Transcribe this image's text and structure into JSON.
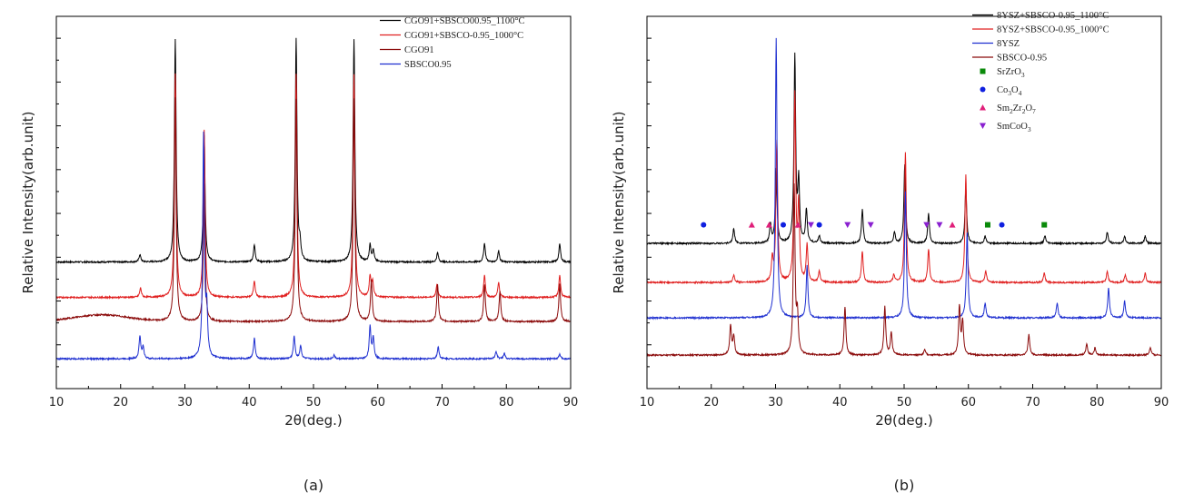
{
  "chart_data": [
    {
      "type": "line",
      "panel": "(a)",
      "xlabel": "2θ(deg.)",
      "ylabel": "Relative Intensity(arb.unit)",
      "xlim": [
        10,
        90
      ],
      "xticks": [
        10,
        20,
        30,
        40,
        50,
        60,
        70,
        80,
        90
      ],
      "yticks": "unlabeled",
      "grid": false,
      "legend": "top-right",
      "series": [
        {
          "name": "CGO91+SBSCO00.95_1100°C",
          "color": "#000000",
          "baseline": 0.34,
          "peaks": [
            [
              23.0,
              0.02
            ],
            [
              28.5,
              0.6
            ],
            [
              33.0,
              0.34
            ],
            [
              40.8,
              0.045
            ],
            [
              47.3,
              0.6
            ],
            [
              47.9,
              0.04
            ],
            [
              56.3,
              0.6
            ],
            [
              58.8,
              0.045
            ],
            [
              59.3,
              0.03
            ],
            [
              69.3,
              0.025
            ],
            [
              76.6,
              0.05
            ],
            [
              78.8,
              0.03
            ],
            [
              88.3,
              0.048
            ]
          ]
        },
        {
          "name": "CGO91+SBSCO-0.95_1000°C",
          "color": "#e02020",
          "baseline": 0.245,
          "peaks": [
            [
              23.1,
              0.025
            ],
            [
              28.5,
              0.6
            ],
            [
              33.0,
              0.45
            ],
            [
              40.8,
              0.045
            ],
            [
              47.3,
              0.6
            ],
            [
              56.3,
              0.6
            ],
            [
              58.8,
              0.055
            ],
            [
              59.2,
              0.04
            ],
            [
              69.2,
              0.035
            ],
            [
              76.6,
              0.06
            ],
            [
              78.8,
              0.04
            ],
            [
              88.3,
              0.06
            ]
          ]
        },
        {
          "name": "CGO91",
          "color": "#8b0a0a",
          "baseline": 0.18,
          "hump": [
            17,
            0.018
          ],
          "peaks": [
            [
              28.5,
              0.6
            ],
            [
              33.0,
              0.37
            ],
            [
              47.3,
              0.6
            ],
            [
              56.3,
              0.6
            ],
            [
              59.0,
              0.11
            ],
            [
              69.3,
              0.1
            ],
            [
              76.6,
              0.1
            ],
            [
              79.0,
              0.08
            ],
            [
              88.3,
              0.1
            ]
          ]
        },
        {
          "name": "SBSCO0.95",
          "color": "#1e2fd0",
          "baseline": 0.08,
          "peaks": [
            [
              23.0,
              0.06
            ],
            [
              23.5,
              0.03
            ],
            [
              32.9,
              0.6
            ],
            [
              33.4,
              0.12
            ],
            [
              40.8,
              0.055
            ],
            [
              47.0,
              0.06
            ],
            [
              48.0,
              0.035
            ],
            [
              53.2,
              0.01
            ],
            [
              58.8,
              0.085
            ],
            [
              59.3,
              0.055
            ],
            [
              69.4,
              0.032
            ],
            [
              78.4,
              0.02
            ],
            [
              79.7,
              0.015
            ],
            [
              88.3,
              0.012
            ]
          ]
        }
      ]
    },
    {
      "type": "line",
      "panel": "(b)",
      "xlabel": "2θ(deg.)",
      "ylabel": "Relative Intensity(arb.unit)",
      "xlim": [
        10,
        90
      ],
      "xticks": [
        10,
        20,
        30,
        40,
        50,
        60,
        70,
        80,
        90
      ],
      "yticks": "unlabeled",
      "grid": false,
      "legend": "top-right",
      "series": [
        {
          "name": "8YSZ+SBSCO-0.95_1100°C",
          "color": "#000000",
          "baseline": 0.39,
          "peaks": [
            [
              23.5,
              0.04
            ],
            [
              29.2,
              0.05
            ],
            [
              30.1,
              0.2
            ],
            [
              33.0,
              0.5
            ],
            [
              33.6,
              0.16
            ],
            [
              34.8,
              0.09
            ],
            [
              36.8,
              0.02
            ],
            [
              43.5,
              0.09
            ],
            [
              48.5,
              0.03
            ],
            [
              50.1,
              0.21
            ],
            [
              53.8,
              0.08
            ],
            [
              59.6,
              0.15
            ],
            [
              62.6,
              0.02
            ],
            [
              71.9,
              0.02
            ],
            [
              81.6,
              0.03
            ],
            [
              84.3,
              0.02
            ],
            [
              87.5,
              0.02
            ]
          ]
        },
        {
          "name": "8YSZ+SBSCO-0.95_1000°C",
          "color": "#e02020",
          "baseline": 0.285,
          "peaks": [
            [
              23.5,
              0.02
            ],
            [
              29.5,
              0.06
            ],
            [
              30.2,
              0.38
            ],
            [
              33.0,
              0.5
            ],
            [
              33.6,
              0.2
            ],
            [
              34.9,
              0.1
            ],
            [
              36.8,
              0.03
            ],
            [
              43.5,
              0.085
            ],
            [
              48.4,
              0.02
            ],
            [
              50.2,
              0.35
            ],
            [
              53.8,
              0.09
            ],
            [
              59.6,
              0.29
            ],
            [
              62.7,
              0.03
            ],
            [
              71.8,
              0.025
            ],
            [
              81.6,
              0.03
            ],
            [
              84.4,
              0.02
            ],
            [
              87.5,
              0.025
            ]
          ]
        },
        {
          "name": "8YSZ",
          "color": "#1e2fd0",
          "baseline": 0.19,
          "peaks": [
            [
              30.1,
              0.75
            ],
            [
              34.9,
              0.14
            ],
            [
              50.2,
              0.34
            ],
            [
              59.8,
              0.23
            ],
            [
              62.6,
              0.04
            ],
            [
              73.8,
              0.04
            ],
            [
              81.8,
              0.08
            ],
            [
              84.3,
              0.045
            ]
          ]
        },
        {
          "name": "SBSCO-0.95",
          "color": "#8b0a0a",
          "baseline": 0.09,
          "peaks": [
            [
              23.0,
              0.08
            ],
            [
              23.5,
              0.05
            ],
            [
              32.9,
              0.45
            ],
            [
              33.4,
              0.1
            ],
            [
              40.8,
              0.13
            ],
            [
              47.0,
              0.13
            ],
            [
              48.0,
              0.06
            ],
            [
              53.2,
              0.015
            ],
            [
              58.6,
              0.13
            ],
            [
              59.1,
              0.09
            ],
            [
              69.4,
              0.055
            ],
            [
              78.4,
              0.03
            ],
            [
              79.7,
              0.02
            ],
            [
              88.3,
              0.02
            ]
          ]
        }
      ],
      "phase_markers": [
        {
          "name": "SrZrO3",
          "label_base": "SrZrO",
          "label_sub": "3",
          "symbol": "square",
          "color": "#0a8a0a",
          "positions": [
            63.0,
            71.8
          ]
        },
        {
          "name": "Co3O4",
          "label_base": "Co",
          "label_sub": "3",
          "label_mid": "O",
          "label_sub2": "4",
          "symbol": "circle",
          "color": "#1020e0",
          "positions": [
            18.8,
            31.2,
            36.8,
            65.2
          ]
        },
        {
          "name": "Sm2Zr2O7",
          "label_base": "Sm",
          "label_sub": "2",
          "label_mid": "Zr",
          "label_sub2": "2",
          "label_end": "O",
          "label_sub3": "7",
          "symbol": "triangle-up",
          "color": "#e0207a",
          "positions": [
            26.3,
            29.0,
            33.5,
            57.5
          ]
        },
        {
          "name": "SmCoO3",
          "label_base": "SmCoO",
          "label_sub": "3",
          "symbol": "triangle-down",
          "color": "#8a20d0",
          "positions": [
            35.5,
            41.2,
            44.8,
            53.5,
            55.5
          ]
        }
      ],
      "phase_marker_level": 0.44
    }
  ]
}
